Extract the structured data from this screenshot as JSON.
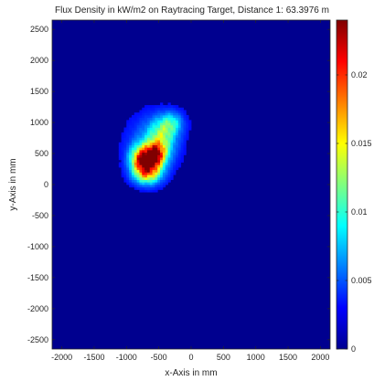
{
  "chart_data": {
    "type": "heatmap",
    "title": "Flux Density in kW/m2 on Raytracing Target, Distance 1: 63.3976 m",
    "xlabel": "x-Axis in mm",
    "ylabel": "y-Axis in mm",
    "xlim": [
      -2150,
      2150
    ],
    "ylim": [
      -2650,
      2650
    ],
    "xticks": [
      -2000,
      -1500,
      -1000,
      -500,
      0,
      500,
      1000,
      1500,
      2000
    ],
    "yticks": [
      2500,
      2000,
      1500,
      1000,
      500,
      0,
      -500,
      -1000,
      -1500,
      -2000,
      -2500
    ],
    "colorbar": {
      "range": [
        0,
        0.024
      ],
      "ticks": [
        0,
        0.005,
        0.01,
        0.015,
        0.02
      ],
      "tick_labels": [
        "0",
        "0.005",
        "0.01",
        "0.015",
        "0.02"
      ],
      "colormap": "jet"
    },
    "background_value": 0,
    "hotspot": {
      "peak_x": -650,
      "peak_y": 350,
      "peak_value": 0.024,
      "extent_x": [
        -1050,
        -250
      ],
      "extent_y": [
        -50,
        1200
      ]
    },
    "blobs": [
      {
        "x": -650,
        "y": 330,
        "sx": 140,
        "sy": 160,
        "v": 0.018
      },
      {
        "x": -550,
        "y": 520,
        "sx": 120,
        "sy": 120,
        "v": 0.014
      },
      {
        "x": -800,
        "y": 420,
        "sx": 110,
        "sy": 150,
        "v": 0.01
      },
      {
        "x": -450,
        "y": 800,
        "sx": 150,
        "sy": 180,
        "v": 0.008
      },
      {
        "x": -300,
        "y": 1000,
        "sx": 120,
        "sy": 120,
        "v": 0.006
      },
      {
        "x": -700,
        "y": 150,
        "sx": 140,
        "sy": 100,
        "v": 0.006
      },
      {
        "x": -600,
        "y": 650,
        "sx": 250,
        "sy": 300,
        "v": 0.004
      },
      {
        "x": -700,
        "y": 360,
        "sx": 50,
        "sy": 50,
        "v": 0.006
      },
      {
        "x": -560,
        "y": 420,
        "sx": 50,
        "sy": 50,
        "v": 0.004
      }
    ]
  }
}
